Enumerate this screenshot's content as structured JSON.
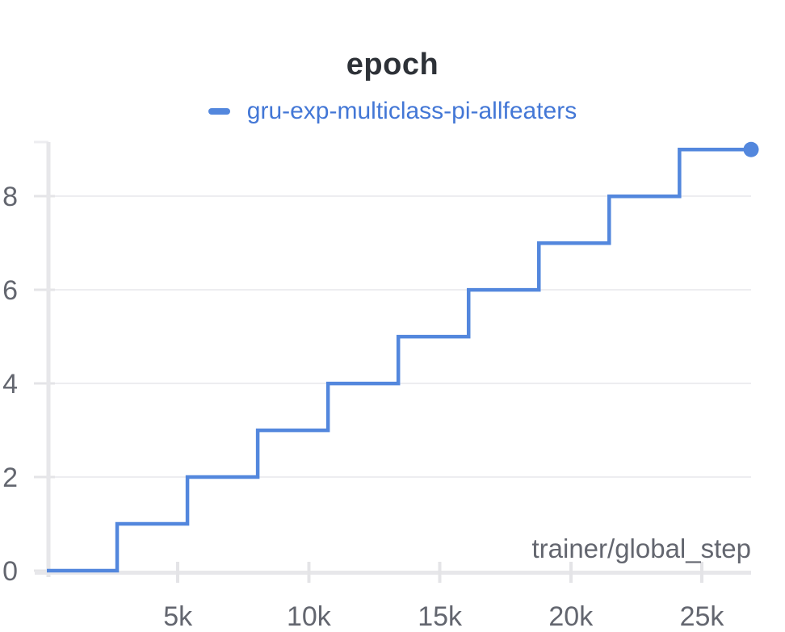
{
  "panel": {
    "title": "epoch"
  },
  "chart_data": {
    "type": "line",
    "line_shape": "step-after",
    "title": "epoch",
    "xlabel": "trainer/global_step",
    "ylabel": "",
    "legend_position": "top-center",
    "grid": "horizontal",
    "legend": [
      {
        "label": "gru-exp-multiclass-pi-allfeaters"
      }
    ],
    "series": [
      {
        "name": "gru-exp-multiclass-pi-allfeaters",
        "points": [
          [
            0,
            0
          ],
          [
            2683,
            1
          ],
          [
            5366,
            2
          ],
          [
            8049,
            3
          ],
          [
            10732,
            4
          ],
          [
            13415,
            5
          ],
          [
            16098,
            6
          ],
          [
            18781,
            7
          ],
          [
            21464,
            8
          ],
          [
            24147,
            9
          ],
          [
            26880,
            9
          ]
        ]
      }
    ],
    "end_marker": {
      "x": 26880,
      "y": 9
    },
    "xlim": [
      0,
      26880
    ],
    "ylim": [
      0,
      9.16
    ],
    "x_ticks": [
      {
        "v": 5000,
        "label": "5k"
      },
      {
        "v": 10000,
        "label": "10k"
      },
      {
        "v": 15000,
        "label": "15k"
      },
      {
        "v": 20000,
        "label": "20k"
      },
      {
        "v": 25000,
        "label": "25k"
      }
    ],
    "y_ticks": [
      {
        "v": 0,
        "label": "0"
      },
      {
        "v": 2,
        "label": "2"
      },
      {
        "v": 4,
        "label": "4"
      },
      {
        "v": 6,
        "label": "6"
      },
      {
        "v": 8,
        "label": "8"
      }
    ]
  },
  "colors": {
    "line": "#5387dd",
    "end_marker": "#5387dd",
    "legend_text": "#4377d6",
    "title_text": "#2d3137",
    "tick_label": "#63666f",
    "axis_label": "#63666f",
    "axis_line": "#e7e7ea",
    "tick_mark": "#e4e4e7",
    "gridline": "#ededf0"
  }
}
